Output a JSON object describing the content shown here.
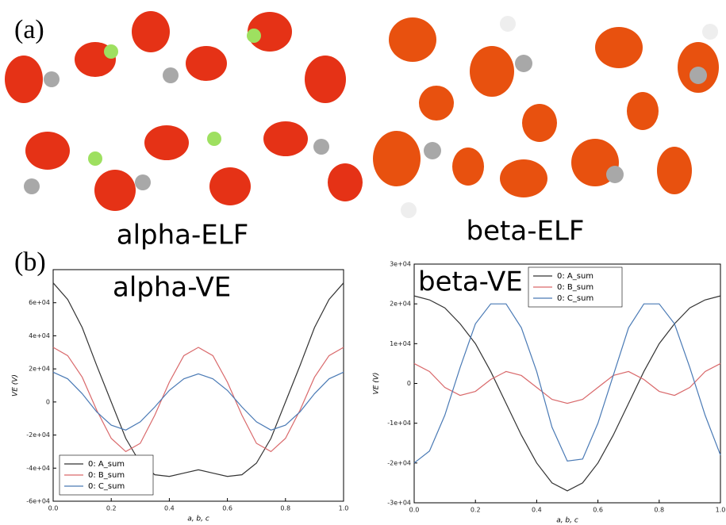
{
  "panel_a": {
    "label": "(a)",
    "captions": [
      "alpha-ELF",
      "beta-ELF"
    ]
  },
  "panel_b": {
    "label": "(b)"
  },
  "chart_data": [
    {
      "type": "line",
      "title": "alpha-VE",
      "xlabel": "a, b, c",
      "ylabel": "VE (V)",
      "x": [
        0,
        0.05,
        0.1,
        0.15,
        0.2,
        0.25,
        0.3,
        0.35,
        0.4,
        0.45,
        0.5,
        0.55,
        0.6,
        0.65,
        0.7,
        0.75,
        0.8,
        0.85,
        0.9,
        0.95,
        1.0
      ],
      "series": [
        {
          "name": "0: A_sum",
          "color": "#333333",
          "values": [
            72000,
            62000,
            45000,
            22000,
            0,
            -22000,
            -37000,
            -44000,
            -45000,
            -43000,
            -41000,
            -43000,
            -45000,
            -44000,
            -37000,
            -22000,
            0,
            22000,
            45000,
            62000,
            72000
          ]
        },
        {
          "name": "0: B_sum",
          "color": "#d9696b",
          "values": [
            33000,
            28000,
            15000,
            -5000,
            -22000,
            -30000,
            -25000,
            -8000,
            12000,
            28000,
            33000,
            28000,
            12000,
            -8000,
            -25000,
            -30000,
            -22000,
            -5000,
            15000,
            28000,
            33000
          ]
        },
        {
          "name": "0: C_sum",
          "color": "#4a7ab5",
          "values": [
            18000,
            14000,
            5000,
            -6000,
            -14000,
            -17000,
            -12000,
            -3000,
            7000,
            14000,
            17000,
            14000,
            7000,
            -3000,
            -12000,
            -17000,
            -14000,
            -6000,
            5000,
            14000,
            18000
          ]
        }
      ],
      "xlim": [
        0,
        1
      ],
      "ylim": [
        -60000,
        80000
      ],
      "xticks": [
        {
          "value": 0,
          "label": "0.0"
        },
        {
          "value": 0.2,
          "label": "0.2"
        },
        {
          "value": 0.4,
          "label": "0.4"
        },
        {
          "value": 0.6,
          "label": "0.6"
        },
        {
          "value": 0.8,
          "label": "0.8"
        },
        {
          "value": 1.0,
          "label": "1.0"
        }
      ],
      "yticks": [
        {
          "value": -60000,
          "label": "-6e+04"
        },
        {
          "value": -40000,
          "label": "-4e+04"
        },
        {
          "value": -20000,
          "label": "-2e+04"
        },
        0,
        {
          "value": 20000,
          "label": "2e+04"
        },
        {
          "value": 40000,
          "label": "4e+04"
        },
        {
          "value": 60000,
          "label": "6e+04"
        }
      ],
      "legend": "lower left"
    },
    {
      "type": "line",
      "title": "beta-VE",
      "xlabel": "a, b, c",
      "ylabel": "VE (V)",
      "x": [
        0,
        0.05,
        0.1,
        0.15,
        0.2,
        0.25,
        0.3,
        0.35,
        0.4,
        0.45,
        0.5,
        0.55,
        0.6,
        0.65,
        0.7,
        0.75,
        0.8,
        0.85,
        0.9,
        0.95,
        1.0
      ],
      "series": [
        {
          "name": "0: A_sum",
          "color": "#333333",
          "values": [
            22000,
            21000,
            19000,
            15000,
            10000,
            3000,
            -5000,
            -13000,
            -20000,
            -25000,
            -27000,
            -25000,
            -20000,
            -13000,
            -5000,
            3000,
            10000,
            15000,
            19000,
            21000,
            22000
          ]
        },
        {
          "name": "0: B_sum",
          "color": "#d9696b",
          "values": [
            5000,
            3000,
            -1000,
            -3000,
            -2000,
            1000,
            3000,
            2000,
            -1000,
            -4000,
            -5000,
            -4000,
            -1000,
            2000,
            3000,
            1000,
            -2000,
            -3000,
            -1000,
            3000,
            5000
          ]
        },
        {
          "name": "0: C_sum",
          "color": "#4a7ab5",
          "values": [
            -20000,
            -17000,
            -8000,
            4000,
            15000,
            20000,
            20000,
            14000,
            3000,
            -11000,
            -19500,
            -19000,
            -10000,
            2000,
            14000,
            20000,
            20000,
            15000,
            4000,
            -8000,
            -18000
          ]
        }
      ],
      "xlim": [
        0,
        1
      ],
      "ylim": [
        -30000,
        30000
      ],
      "xticks": [
        {
          "value": 0,
          "label": "0.0"
        },
        {
          "value": 0.2,
          "label": "0.2"
        },
        {
          "value": 0.4,
          "label": "0.4"
        },
        {
          "value": 0.6,
          "label": "0.6"
        },
        {
          "value": 0.8,
          "label": "0.8"
        },
        {
          "value": 1.0,
          "label": "1.0"
        }
      ],
      "yticks": [
        {
          "value": -30000,
          "label": "-3e+04"
        },
        {
          "value": -20000,
          "label": "-2e+04"
        },
        {
          "value": -10000,
          "label": "-1e+04"
        },
        0,
        {
          "value": 10000,
          "label": "1e+04"
        },
        {
          "value": 20000,
          "label": "2e+04"
        },
        {
          "value": 30000,
          "label": "3e+04"
        }
      ],
      "legend": "upper center"
    }
  ]
}
